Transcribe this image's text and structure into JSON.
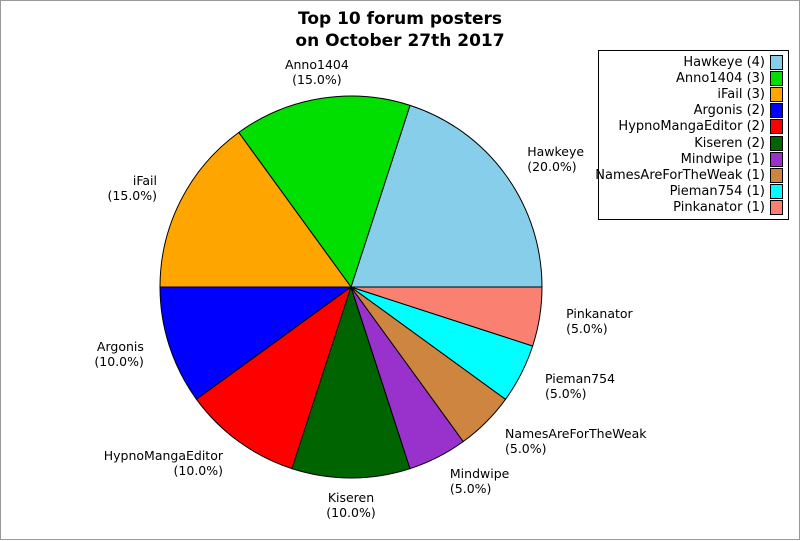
{
  "title": {
    "line1": "Top 10 forum posters",
    "line2": "on October 27th 2017"
  },
  "frame": {
    "border_color": "#999999",
    "background": "#ffffff"
  },
  "chart_data": {
    "type": "pie",
    "title": "Top 10 forum posters on October 27th 2017",
    "start_angle_deg": 0,
    "direction": "counterclockwise",
    "legend_position": "top-right",
    "total_posts": 20,
    "slices": [
      {
        "label": "Hawkeye",
        "posts": 4,
        "percent": 20.0,
        "pct_label": "(20.0%)",
        "legend_label": "Hawkeye (4)",
        "color": "#87CEEB"
      },
      {
        "label": "Anno1404",
        "posts": 3,
        "percent": 15.0,
        "pct_label": "(15.0%)",
        "legend_label": "Anno1404 (3)",
        "color": "#00DF00"
      },
      {
        "label": "iFail",
        "posts": 3,
        "percent": 15.0,
        "pct_label": "(15.0%)",
        "legend_label": "iFail (3)",
        "color": "#FFA500"
      },
      {
        "label": "Argonis",
        "posts": 2,
        "percent": 10.0,
        "pct_label": "(10.0%)",
        "legend_label": "Argonis (2)",
        "color": "#0000FF"
      },
      {
        "label": "HypnoMangaEditor",
        "posts": 2,
        "percent": 10.0,
        "pct_label": "(10.0%)",
        "legend_label": "HypnoMangaEditor (2)",
        "color": "#FF0000"
      },
      {
        "label": "Kiseren",
        "posts": 2,
        "percent": 10.0,
        "pct_label": "(10.0%)",
        "legend_label": "Kiseren (2)",
        "color": "#006400"
      },
      {
        "label": "Mindwipe",
        "posts": 1,
        "percent": 5.0,
        "pct_label": "(5.0%)",
        "legend_label": "Mindwipe (1)",
        "color": "#9932CC"
      },
      {
        "label": "NamesAreForTheWeak",
        "posts": 1,
        "percent": 5.0,
        "pct_label": "(5.0%)",
        "legend_label": "NamesAreForTheWeak (1)",
        "color": "#CD853F"
      },
      {
        "label": "Pieman754",
        "posts": 1,
        "percent": 5.0,
        "pct_label": "(5.0%)",
        "legend_label": "Pieman754 (1)",
        "color": "#00FFFF"
      },
      {
        "label": "Pinkanator",
        "posts": 1,
        "percent": 5.0,
        "pct_label": "(5.0%)",
        "legend_label": "Pinkanator (1)",
        "color": "#FA8072"
      }
    ]
  }
}
